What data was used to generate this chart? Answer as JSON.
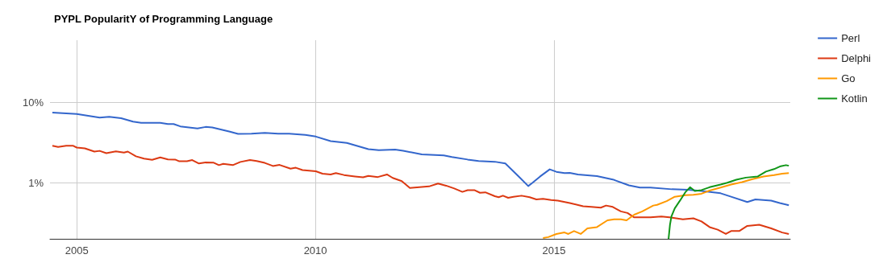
{
  "chart_data": {
    "type": "line",
    "title": "PYPL PopularitY of Programming Language",
    "xlim": [
      2004.44,
      2019.95
    ],
    "xticks": [
      2005,
      2010,
      2015
    ],
    "ylim": [
      0.2,
      60
    ],
    "yticks": [
      {
        "value": 10,
        "label": "10%"
      },
      {
        "value": 1,
        "label": "1%"
      }
    ],
    "log": "y",
    "grid": true,
    "legend": "right",
    "marker": "none",
    "line_style": "solid",
    "series": [
      {
        "name": "Perl",
        "color": "#3366cc",
        "x": [
          2004.49,
          2005.0,
          2005.48,
          2005.68,
          2005.93,
          2006.18,
          2006.35,
          2006.75,
          2006.91,
          2007.03,
          2007.17,
          2007.53,
          2007.7,
          2007.84,
          2008.21,
          2008.38,
          2008.66,
          2008.94,
          2009.22,
          2009.45,
          2009.79,
          2010.01,
          2010.32,
          2010.66,
          2011.11,
          2011.33,
          2011.67,
          2011.84,
          2012.23,
          2012.69,
          2012.86,
          2013.19,
          2013.42,
          2013.76,
          2013.98,
          2014.26,
          2014.46,
          2014.54,
          2014.71,
          2014.91,
          2015.05,
          2015.22,
          2015.33,
          2015.5,
          2015.9,
          2016.23,
          2016.57,
          2016.8,
          2017.02,
          2017.47,
          2017.81,
          2018.09,
          2018.49,
          2018.71,
          2019.05,
          2019.22,
          2019.55,
          2019.73,
          2019.92
        ],
        "values": [
          7.5,
          7.2,
          6.5,
          6.65,
          6.4,
          5.8,
          5.6,
          5.6,
          5.4,
          5.4,
          5.05,
          4.75,
          4.97,
          4.9,
          4.33,
          4.07,
          4.1,
          4.2,
          4.1,
          4.1,
          3.95,
          3.77,
          3.31,
          3.14,
          2.63,
          2.55,
          2.6,
          2.51,
          2.26,
          2.2,
          2.1,
          1.95,
          1.87,
          1.83,
          1.74,
          1.2,
          0.91,
          0.99,
          1.2,
          1.47,
          1.37,
          1.32,
          1.33,
          1.27,
          1.21,
          1.1,
          0.93,
          0.87,
          0.87,
          0.83,
          0.82,
          0.79,
          0.74,
          0.67,
          0.575,
          0.62,
          0.6,
          0.56,
          0.525
        ]
      },
      {
        "name": "Delphi",
        "color": "#dc3912",
        "x": [
          2004.49,
          2004.61,
          2004.78,
          2004.92,
          2005.0,
          2005.17,
          2005.37,
          2005.48,
          2005.62,
          2005.82,
          2005.99,
          2006.07,
          2006.24,
          2006.41,
          2006.58,
          2006.75,
          2006.91,
          2007.06,
          2007.14,
          2007.31,
          2007.42,
          2007.56,
          2007.7,
          2007.87,
          2007.98,
          2008.07,
          2008.27,
          2008.43,
          2008.63,
          2008.77,
          2008.94,
          2009.11,
          2009.25,
          2009.48,
          2009.59,
          2009.73,
          2010.01,
          2010.15,
          2010.32,
          2010.43,
          2010.6,
          2010.83,
          2011.0,
          2011.11,
          2011.31,
          2011.5,
          2011.62,
          2011.81,
          2011.98,
          2012.18,
          2012.38,
          2012.57,
          2012.74,
          2012.91,
          2013.08,
          2013.19,
          2013.33,
          2013.45,
          2013.56,
          2013.76,
          2013.84,
          2013.93,
          2014.04,
          2014.15,
          2014.32,
          2014.49,
          2014.63,
          2014.77,
          2014.94,
          2015.08,
          2015.33,
          2015.61,
          2015.78,
          2015.98,
          2016.09,
          2016.23,
          2016.4,
          2016.54,
          2016.68,
          2017.02,
          2017.25,
          2017.42,
          2017.7,
          2017.92,
          2018.09,
          2018.26,
          2018.43,
          2018.6,
          2018.71,
          2018.88,
          2019.05,
          2019.3,
          2019.55,
          2019.78,
          2019.92
        ],
        "values": [
          2.9,
          2.8,
          2.9,
          2.9,
          2.75,
          2.69,
          2.45,
          2.5,
          2.34,
          2.47,
          2.38,
          2.45,
          2.14,
          2.0,
          1.93,
          2.07,
          1.96,
          1.95,
          1.86,
          1.86,
          1.92,
          1.74,
          1.79,
          1.78,
          1.66,
          1.72,
          1.66,
          1.82,
          1.92,
          1.87,
          1.77,
          1.62,
          1.67,
          1.5,
          1.54,
          1.44,
          1.39,
          1.3,
          1.27,
          1.32,
          1.25,
          1.2,
          1.17,
          1.22,
          1.18,
          1.27,
          1.15,
          1.05,
          0.86,
          0.88,
          0.9,
          0.98,
          0.92,
          0.85,
          0.77,
          0.81,
          0.81,
          0.75,
          0.76,
          0.68,
          0.66,
          0.69,
          0.65,
          0.67,
          0.69,
          0.66,
          0.62,
          0.63,
          0.61,
          0.6,
          0.56,
          0.51,
          0.5,
          0.49,
          0.52,
          0.5,
          0.44,
          0.42,
          0.37,
          0.37,
          0.38,
          0.37,
          0.35,
          0.36,
          0.33,
          0.28,
          0.26,
          0.23,
          0.25,
          0.25,
          0.29,
          0.3,
          0.27,
          0.24,
          0.23
        ]
      },
      {
        "name": "Go",
        "color": "#ff9900",
        "x": [
          2014.77,
          2014.88,
          2015.05,
          2015.22,
          2015.3,
          2015.42,
          2015.56,
          2015.7,
          2015.9,
          2016.12,
          2016.26,
          2016.4,
          2016.52,
          2016.68,
          2016.85,
          2017.08,
          2017.16,
          2017.36,
          2017.53,
          2017.75,
          2017.92,
          2018.09,
          2018.26,
          2018.49,
          2018.71,
          2018.94,
          2019.16,
          2019.39,
          2019.61,
          2019.78,
          2019.92
        ],
        "values": [
          0.205,
          0.21,
          0.23,
          0.24,
          0.23,
          0.25,
          0.23,
          0.27,
          0.28,
          0.34,
          0.35,
          0.35,
          0.34,
          0.4,
          0.44,
          0.52,
          0.53,
          0.59,
          0.67,
          0.7,
          0.71,
          0.73,
          0.8,
          0.87,
          0.95,
          1.02,
          1.11,
          1.2,
          1.25,
          1.3,
          1.32
        ]
      },
      {
        "name": "Kotlin",
        "color": "#109618",
        "x": [
          2017.4,
          2017.43,
          2017.46,
          2017.53,
          2017.64,
          2017.75,
          2017.85,
          2017.95,
          2018.09,
          2018.26,
          2018.49,
          2018.63,
          2018.82,
          2019.02,
          2019.27,
          2019.44,
          2019.61,
          2019.75,
          2019.86,
          2019.92
        ],
        "values": [
          0.2,
          0.3,
          0.38,
          0.48,
          0.6,
          0.76,
          0.88,
          0.79,
          0.81,
          0.88,
          0.95,
          1.0,
          1.09,
          1.16,
          1.2,
          1.38,
          1.48,
          1.61,
          1.66,
          1.63
        ]
      }
    ]
  }
}
